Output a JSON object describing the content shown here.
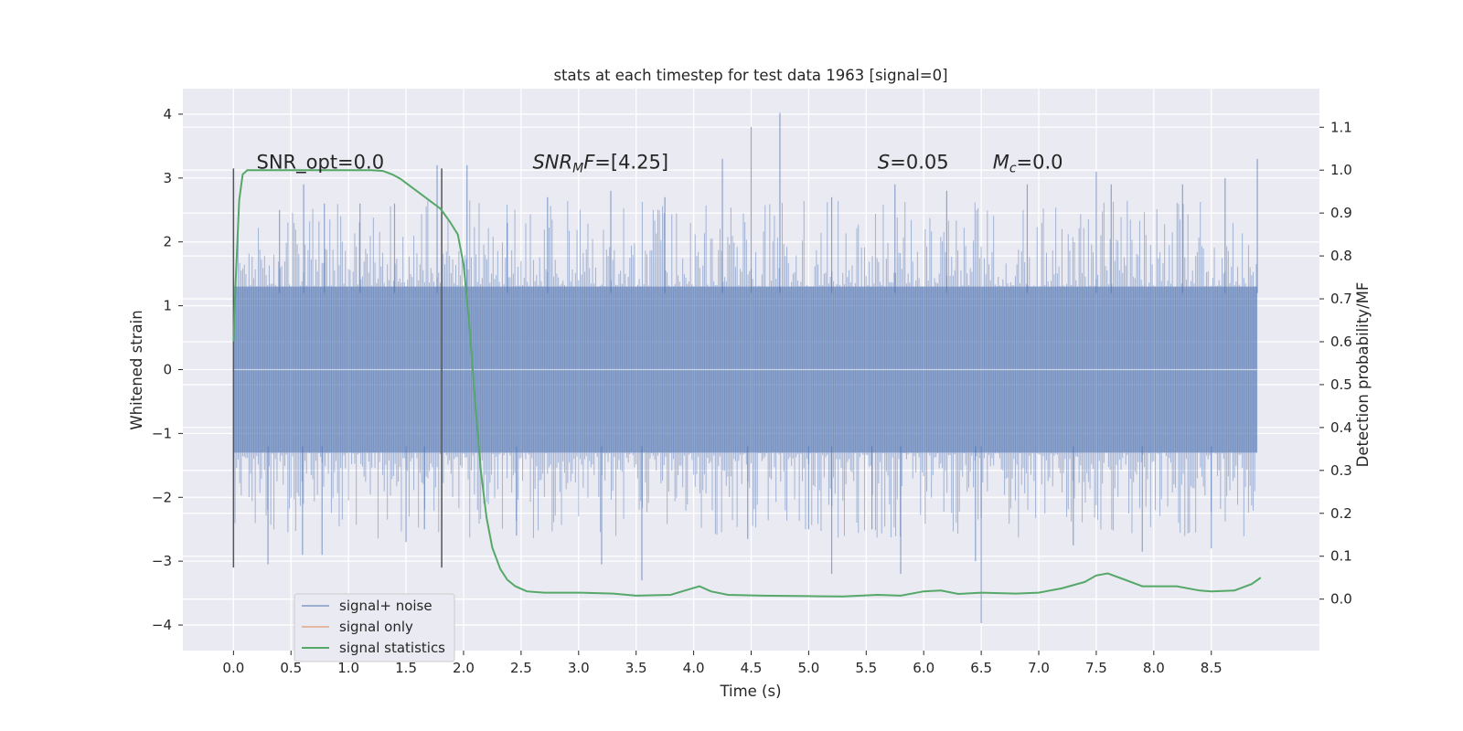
{
  "chart_data": {
    "type": "line",
    "title": "stats at each timestep for test data 1963 [signal=0]",
    "xlabel": "Time (s)",
    "ylabel": "Whitened strain",
    "y2label": "Detection probability/MF",
    "xlim": [
      -0.44,
      9.44
    ],
    "ylim": [
      -4.4,
      4.4
    ],
    "y2lim": [
      -0.12,
      1.19
    ],
    "xticks": [
      0.0,
      0.5,
      1.0,
      1.5,
      2.0,
      2.5,
      3.0,
      3.5,
      4.0,
      4.5,
      5.0,
      5.5,
      6.0,
      6.5,
      7.0,
      7.5,
      8.0,
      8.5
    ],
    "xtick_labels": [
      "0.0",
      "0.5",
      "1.0",
      "1.5",
      "2.0",
      "2.5",
      "3.0",
      "3.5",
      "4.0",
      "4.5",
      "5.0",
      "5.5",
      "6.0",
      "6.5",
      "7.0",
      "7.5",
      "8.0",
      "8.5"
    ],
    "yticks": [
      4,
      3,
      2,
      1,
      0,
      -1,
      -2,
      -3,
      -4
    ],
    "ytick_labels": [
      "4",
      "3",
      "2",
      "1",
      "0",
      "−1",
      "−2",
      "−3",
      "−4"
    ],
    "y2ticks": [
      1.1,
      1.0,
      0.9,
      0.8,
      0.7,
      0.6,
      0.5,
      0.4,
      0.3,
      0.2,
      0.1,
      0.0
    ],
    "y2tick_labels": [
      "1.1",
      "1.0",
      "0.9",
      "0.8",
      "0.7",
      "0.6",
      "0.5",
      "0.4",
      "0.3",
      "0.2",
      "0.1",
      "0.0"
    ],
    "grid": true,
    "noise_series": {
      "name": "signal+ noise",
      "color": "#4c72b0",
      "x_start": 0.0,
      "x_end": 8.9,
      "core_amplitude": 1.3,
      "peaks": [
        {
          "x": 0.4,
          "y": 2.5
        },
        {
          "x": 0.61,
          "y": 2.9
        },
        {
          "x": 0.79,
          "y": 2.6
        },
        {
          "x": 1.1,
          "y": 2.6
        },
        {
          "x": 1.4,
          "y": 2.6
        },
        {
          "x": 1.77,
          "y": 3.2
        },
        {
          "x": 2.03,
          "y": 3.2
        },
        {
          "x": 2.38,
          "y": 2.3
        },
        {
          "x": 2.73,
          "y": 2.7
        },
        {
          "x": 3.28,
          "y": 2.8
        },
        {
          "x": 3.75,
          "y": 2.7
        },
        {
          "x": 4.25,
          "y": 3.3
        },
        {
          "x": 4.5,
          "y": 3.8
        },
        {
          "x": 4.75,
          "y": 4.02
        },
        {
          "x": 5.2,
          "y": 2.7
        },
        {
          "x": 5.75,
          "y": 2.9
        },
        {
          "x": 6.2,
          "y": 2.8
        },
        {
          "x": 6.9,
          "y": 2.9
        },
        {
          "x": 7.5,
          "y": 3.1
        },
        {
          "x": 7.63,
          "y": 2.9
        },
        {
          "x": 8.25,
          "y": 2.9
        },
        {
          "x": 8.62,
          "y": 3.0
        },
        {
          "x": 8.9,
          "y": 3.3
        }
      ],
      "troughs": [
        {
          "x": 0.3,
          "y": -3.05
        },
        {
          "x": 0.6,
          "y": -2.9
        },
        {
          "x": 0.77,
          "y": -2.9
        },
        {
          "x": 1.5,
          "y": -2.7
        },
        {
          "x": 1.66,
          "y": -2.5
        },
        {
          "x": 2.46,
          "y": -2.6
        },
        {
          "x": 3.2,
          "y": -3.05
        },
        {
          "x": 3.55,
          "y": -3.3
        },
        {
          "x": 4.47,
          "y": -2.65
        },
        {
          "x": 5.0,
          "y": -2.5
        },
        {
          "x": 5.2,
          "y": -3.2
        },
        {
          "x": 5.55,
          "y": -2.5
        },
        {
          "x": 5.8,
          "y": -3.2
        },
        {
          "x": 6.45,
          "y": -3.0
        },
        {
          "x": 6.5,
          "y": -3.97
        },
        {
          "x": 7.3,
          "y": -2.75
        },
        {
          "x": 7.9,
          "y": -2.85
        },
        {
          "x": 8.5,
          "y": -2.8
        }
      ]
    },
    "signal_only": {
      "name": "signal only",
      "color": "#dd8452",
      "x": [],
      "y": []
    },
    "statistics": {
      "name": "signal statistics",
      "color": "#55a868",
      "x": [
        0.0,
        0.02,
        0.05,
        0.08,
        0.12,
        0.18,
        0.25,
        0.4,
        0.7,
        1.0,
        1.2,
        1.3,
        1.38,
        1.45,
        1.5,
        1.6,
        1.7,
        1.8,
        1.88,
        1.95,
        2.0,
        2.05,
        2.1,
        2.15,
        2.2,
        2.25,
        2.32,
        2.38,
        2.45,
        2.55,
        2.7,
        3.0,
        3.3,
        3.5,
        3.8,
        3.95,
        4.05,
        4.15,
        4.3,
        4.6,
        5.0,
        5.3,
        5.6,
        5.8,
        6.0,
        6.15,
        6.3,
        6.5,
        6.8,
        7.0,
        7.2,
        7.4,
        7.5,
        7.6,
        7.75,
        7.9,
        8.2,
        8.4,
        8.5,
        8.7,
        8.85,
        8.93
      ],
      "y": [
        0.6,
        0.75,
        0.93,
        0.99,
        1.0,
        1.0,
        1.0,
        1.0,
        1.0,
        1.0,
        1.0,
        0.998,
        0.99,
        0.98,
        0.97,
        0.95,
        0.93,
        0.91,
        0.88,
        0.85,
        0.78,
        0.64,
        0.46,
        0.3,
        0.19,
        0.12,
        0.07,
        0.045,
        0.03,
        0.018,
        0.015,
        0.015,
        0.013,
        0.008,
        0.01,
        0.022,
        0.03,
        0.018,
        0.01,
        0.008,
        0.007,
        0.006,
        0.01,
        0.008,
        0.018,
        0.02,
        0.012,
        0.015,
        0.013,
        0.015,
        0.025,
        0.04,
        0.055,
        0.06,
        0.045,
        0.03,
        0.03,
        0.02,
        0.018,
        0.02,
        0.035,
        0.05
      ]
    },
    "vlines": [
      {
        "x": 0.0,
        "y_min": -3.1,
        "y_max": 3.15
      },
      {
        "x": 1.81,
        "y_min": -3.1,
        "y_max": 3.15
      }
    ],
    "annotations": [
      {
        "key": "snr-opt",
        "prefix": "SNR_opt=0.0",
        "italic": "",
        "sub": "",
        "italic2": "",
        "suffix": "",
        "x": 0.2,
        "y": 3.15
      },
      {
        "key": "snr-mf",
        "prefix": "",
        "italic": "SNR",
        "sub": "M",
        "italic2": "F",
        "suffix": "=[4.25]",
        "x": 2.6,
        "y": 3.15
      },
      {
        "key": "s-stat",
        "prefix": "",
        "italic": "S",
        "sub": "",
        "italic2": "",
        "suffix": "=0.05",
        "x": 5.6,
        "y": 3.15
      },
      {
        "key": "mc",
        "prefix": "",
        "italic": "M",
        "sub": "c",
        "italic2": "",
        "suffix": "=0.0",
        "x": 6.6,
        "y": 3.15
      }
    ],
    "legend": {
      "location": "lower-left",
      "entries": [
        {
          "label": "signal+ noise",
          "color": "#4c72b0"
        },
        {
          "label": "signal only",
          "color": "#dd8452"
        },
        {
          "label": "signal statistics",
          "color": "#55a868"
        }
      ]
    }
  },
  "colors": {
    "plot_background": "#eaeaf2",
    "grid": "#ffffff",
    "vline": "#555555",
    "legend_edge": "#cccccc"
  }
}
